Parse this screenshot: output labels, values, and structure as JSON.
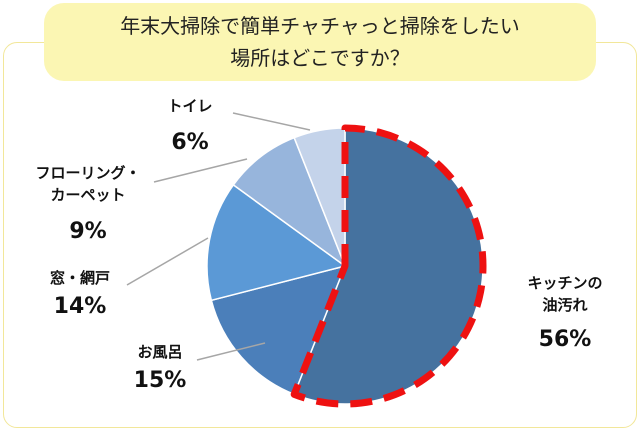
{
  "title": {
    "line1": "年末大掃除で簡単チャチャっと掃除をしたい",
    "line2": "場所はどこですか？"
  },
  "chart_data": {
    "type": "pie",
    "slices": [
      {
        "name_lines": [
          "キッチンの",
          "油汚れ"
        ],
        "value": 56,
        "pct_label": "56%",
        "color": "#45729f",
        "highlighted": true
      },
      {
        "name_lines": [
          "お風呂"
        ],
        "value": 15,
        "pct_label": "15%",
        "color": "#4b7fba"
      },
      {
        "name_lines": [
          "窓・網戸"
        ],
        "value": 14,
        "pct_label": "14%",
        "color": "#5b99d6"
      },
      {
        "name_lines": [
          "フローリング・",
          "カーペット"
        ],
        "value": 9,
        "pct_label": "9%",
        "color": "#97b5dc"
      },
      {
        "name_lines": [
          "トイレ"
        ],
        "value": 6,
        "pct_label": "6%",
        "color": "#c4d3ea"
      }
    ],
    "highlight_color": "#ee1111",
    "leader_color": "#a6a6a6"
  }
}
